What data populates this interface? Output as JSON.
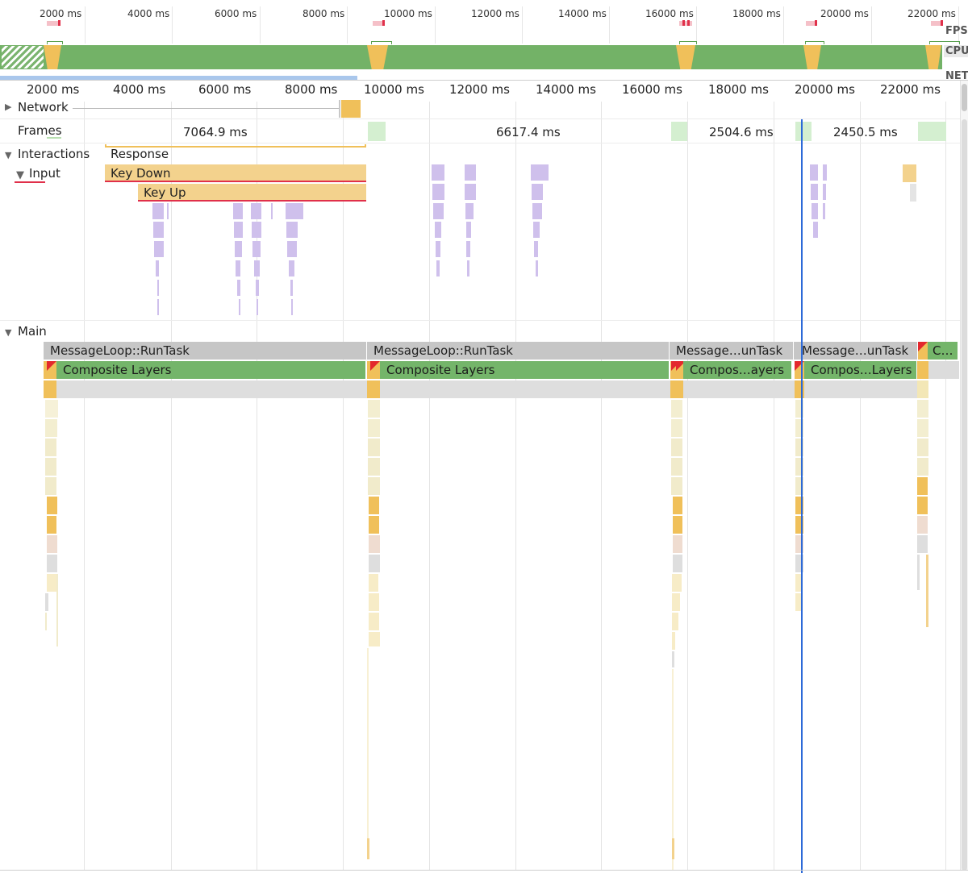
{
  "overview": {
    "ticks": [
      "2000 ms",
      "4000 ms",
      "6000 ms",
      "8000 ms",
      "10000 ms",
      "12000 ms",
      "14000 ms",
      "16000 ms",
      "18000 ms",
      "20000 ms",
      "22000 ms"
    ],
    "labels": {
      "fps": "FPS",
      "cpu": "CPU",
      "net": "NET"
    }
  },
  "ruler": {
    "ticks": [
      "2000 ms",
      "4000 ms",
      "6000 ms",
      "8000 ms",
      "10000 ms",
      "12000 ms",
      "14000 ms",
      "16000 ms",
      "18000 ms",
      "20000 ms",
      "22000 ms"
    ]
  },
  "rows": {
    "network": "Network",
    "frames": "Frames",
    "interactions": "Interactions",
    "input": "Input",
    "main": "Main"
  },
  "frames": {
    "durations": [
      "7064.9 ms",
      "6617.4 ms",
      "2504.6 ms",
      "2450.5 ms"
    ]
  },
  "interactions": {
    "response": "Response",
    "key_down": "Key Down",
    "key_up": "Key Up"
  },
  "main": {
    "tasks": [
      "MessageLoop::RunTask",
      "MessageLoop::RunTask",
      "Message…unTask",
      "Message…unTask",
      "C…"
    ],
    "composites": [
      "Composite Layers",
      "Composite Layers",
      "Compos…ayers",
      "Compos…Layers"
    ]
  },
  "colors": {
    "cpu_green": "#73b267",
    "painting_yellow": "#f0c05a",
    "input_purple": "#cfc0ec",
    "task_gray": "#c6c6c6",
    "cursor_blue": "#2d6ad8",
    "frame_green": "#d4efd0"
  }
}
